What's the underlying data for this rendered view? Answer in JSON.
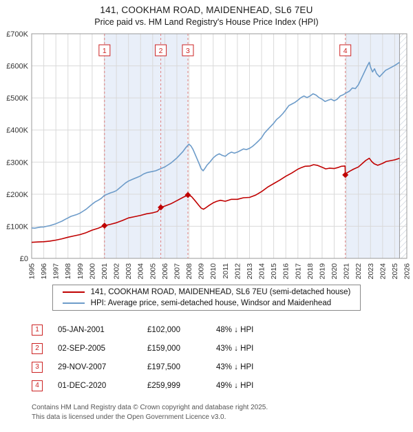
{
  "title": "141, COOKHAM ROAD, MAIDENHEAD, SL6 7EU",
  "subtitle": "Price paid vs. HM Land Registry's House Price Index (HPI)",
  "legend": {
    "property": "141, COOKHAM ROAD, MAIDENHEAD, SL6 7EU (semi-detached house)",
    "hpi": "HPI: Average price, semi-detached house, Windsor and Maidenhead"
  },
  "transactions": [
    {
      "num": "1",
      "date": "05-JAN-2001",
      "price": "£102,000",
      "vs_hpi": "48% ↓ HPI"
    },
    {
      "num": "2",
      "date": "02-SEP-2005",
      "price": "£159,000",
      "vs_hpi": "43% ↓ HPI"
    },
    {
      "num": "3",
      "date": "29-NOV-2007",
      "price": "£197,500",
      "vs_hpi": "43% ↓ HPI"
    },
    {
      "num": "4",
      "date": "01-DEC-2020",
      "price": "£259,999",
      "vs_hpi": "49% ↓ HPI"
    }
  ],
  "footer": {
    "line1": "Contains HM Land Registry data © Crown copyright and database right 2025.",
    "line2": "This data is licensed under the Open Government Licence v3.0."
  },
  "chart_data": {
    "type": "line",
    "title": "141, COOKHAM ROAD, MAIDENHEAD, SL6 7EU",
    "subtitle": "Price paid vs. HM Land Registry's House Price Index (HPI)",
    "xlabel": "",
    "ylabel": "",
    "grid": true,
    "legend_position": "bottom",
    "x_range": [
      1995,
      2026
    ],
    "y_range": [
      0,
      700000
    ],
    "y_ticks": [
      0,
      100000,
      200000,
      300000,
      400000,
      500000,
      600000,
      700000
    ],
    "y_tick_labels": [
      "£0",
      "£100K",
      "£200K",
      "£300K",
      "£400K",
      "£500K",
      "£600K",
      "£700K"
    ],
    "x_ticks": [
      1995,
      1996,
      1997,
      1998,
      1999,
      2000,
      2001,
      2002,
      2003,
      2004,
      2005,
      2006,
      2007,
      2008,
      2009,
      2010,
      2011,
      2012,
      2013,
      2014,
      2015,
      2016,
      2017,
      2018,
      2019,
      2020,
      2021,
      2022,
      2023,
      2024,
      2025,
      2026
    ],
    "colors": {
      "property": "#c00000",
      "hpi": "#6c9bc9",
      "shade": "#e9eff9",
      "dashed": "#e08080",
      "grid": "#d9d9d9",
      "border": "#999999",
      "hatch": "#b8c2d0",
      "marker_box": "#cc2222"
    },
    "shaded_regions": [
      [
        2001.02,
        2007.91
      ],
      [
        2020.92,
        2025.4
      ]
    ],
    "hatched_region": [
      2025.4,
      2026
    ],
    "data_end_x": 2025.4,
    "markers": [
      {
        "label": "1",
        "x": 2001.02,
        "y": 102000
      },
      {
        "label": "2",
        "x": 2005.67,
        "y": 159000
      },
      {
        "label": "3",
        "x": 2007.91,
        "y": 197500
      },
      {
        "label": "4",
        "x": 2020.92,
        "y": 259999
      }
    ],
    "series": [
      {
        "name": "HPI: Average price, semi-detached house, Windsor and Maidenhead",
        "key": "hpi",
        "color": "#6c9bc9",
        "points": [
          [
            1995.0,
            95000
          ],
          [
            1995.25,
            94000
          ],
          [
            1995.5,
            96000
          ],
          [
            1995.75,
            97500
          ],
          [
            1996.0,
            98000
          ],
          [
            1996.25,
            100000
          ],
          [
            1996.5,
            102000
          ],
          [
            1996.75,
            105000
          ],
          [
            1997.0,
            108000
          ],
          [
            1997.25,
            112000
          ],
          [
            1997.5,
            116000
          ],
          [
            1997.75,
            121000
          ],
          [
            1998.0,
            126000
          ],
          [
            1998.25,
            131000
          ],
          [
            1998.5,
            134000
          ],
          [
            1998.75,
            137000
          ],
          [
            1999.0,
            141000
          ],
          [
            1999.25,
            147000
          ],
          [
            1999.5,
            153000
          ],
          [
            1999.75,
            161000
          ],
          [
            2000.0,
            169000
          ],
          [
            2000.25,
            176000
          ],
          [
            2000.5,
            181000
          ],
          [
            2000.75,
            187000
          ],
          [
            2001.0,
            196000
          ],
          [
            2001.25,
            200000
          ],
          [
            2001.5,
            204000
          ],
          [
            2001.75,
            207000
          ],
          [
            2002.0,
            211000
          ],
          [
            2002.25,
            219000
          ],
          [
            2002.5,
            227000
          ],
          [
            2002.75,
            235000
          ],
          [
            2003.0,
            241000
          ],
          [
            2003.25,
            245000
          ],
          [
            2003.5,
            249000
          ],
          [
            2003.75,
            253000
          ],
          [
            2004.0,
            257000
          ],
          [
            2004.25,
            263000
          ],
          [
            2004.5,
            267000
          ],
          [
            2004.75,
            269000
          ],
          [
            2005.0,
            271000
          ],
          [
            2005.25,
            273000
          ],
          [
            2005.5,
            277000
          ],
          [
            2005.75,
            281000
          ],
          [
            2006.0,
            285000
          ],
          [
            2006.25,
            291000
          ],
          [
            2006.5,
            297000
          ],
          [
            2006.75,
            305000
          ],
          [
            2007.0,
            313000
          ],
          [
            2007.25,
            323000
          ],
          [
            2007.5,
            333000
          ],
          [
            2007.75,
            346000
          ],
          [
            2008.0,
            356000
          ],
          [
            2008.17,
            350000
          ],
          [
            2008.33,
            340000
          ],
          [
            2008.5,
            325000
          ],
          [
            2008.67,
            310000
          ],
          [
            2008.83,
            296000
          ],
          [
            2009.0,
            280000
          ],
          [
            2009.17,
            273000
          ],
          [
            2009.33,
            281000
          ],
          [
            2009.5,
            291000
          ],
          [
            2009.75,
            301000
          ],
          [
            2010.0,
            313000
          ],
          [
            2010.25,
            321000
          ],
          [
            2010.5,
            326000
          ],
          [
            2010.75,
            321000
          ],
          [
            2011.0,
            318000
          ],
          [
            2011.25,
            326000
          ],
          [
            2011.5,
            331000
          ],
          [
            2011.75,
            328000
          ],
          [
            2012.0,
            331000
          ],
          [
            2012.25,
            336000
          ],
          [
            2012.5,
            341000
          ],
          [
            2012.75,
            339000
          ],
          [
            2013.0,
            343000
          ],
          [
            2013.25,
            349000
          ],
          [
            2013.5,
            357000
          ],
          [
            2013.75,
            366000
          ],
          [
            2014.0,
            376000
          ],
          [
            2014.25,
            391000
          ],
          [
            2014.5,
            401000
          ],
          [
            2014.75,
            411000
          ],
          [
            2015.0,
            421000
          ],
          [
            2015.25,
            433000
          ],
          [
            2015.5,
            441000
          ],
          [
            2015.75,
            451000
          ],
          [
            2016.0,
            463000
          ],
          [
            2016.25,
            476000
          ],
          [
            2016.5,
            481000
          ],
          [
            2016.75,
            486000
          ],
          [
            2017.0,
            493000
          ],
          [
            2017.25,
            501000
          ],
          [
            2017.5,
            506000
          ],
          [
            2017.75,
            501000
          ],
          [
            2018.0,
            506000
          ],
          [
            2018.25,
            513000
          ],
          [
            2018.5,
            509000
          ],
          [
            2018.75,
            501000
          ],
          [
            2019.0,
            496000
          ],
          [
            2019.25,
            489000
          ],
          [
            2019.5,
            493000
          ],
          [
            2019.75,
            496000
          ],
          [
            2020.0,
            491000
          ],
          [
            2020.25,
            496000
          ],
          [
            2020.5,
            506000
          ],
          [
            2020.75,
            510000
          ],
          [
            2021.0,
            516000
          ],
          [
            2021.25,
            521000
          ],
          [
            2021.5,
            531000
          ],
          [
            2021.75,
            529000
          ],
          [
            2022.0,
            541000
          ],
          [
            2022.25,
            561000
          ],
          [
            2022.5,
            581000
          ],
          [
            2022.75,
            601000
          ],
          [
            2022.9,
            611000
          ],
          [
            2023.0,
            596000
          ],
          [
            2023.17,
            581000
          ],
          [
            2023.33,
            591000
          ],
          [
            2023.5,
            576000
          ],
          [
            2023.75,
            566000
          ],
          [
            2024.0,
            576000
          ],
          [
            2024.25,
            586000
          ],
          [
            2024.5,
            591000
          ],
          [
            2024.75,
            596000
          ],
          [
            2025.0,
            601000
          ],
          [
            2025.2,
            606000
          ],
          [
            2025.4,
            611000
          ]
        ]
      },
      {
        "name": "141, COOKHAM ROAD, MAIDENHEAD, SL6 7EU (semi-detached house)",
        "key": "property",
        "color": "#c00000",
        "points": [
          [
            1995.0,
            50000
          ],
          [
            1995.5,
            51000
          ],
          [
            1996.0,
            52000
          ],
          [
            1996.5,
            54000
          ],
          [
            1997.0,
            57000
          ],
          [
            1997.5,
            61000
          ],
          [
            1998.0,
            66000
          ],
          [
            1998.5,
            70000
          ],
          [
            1999.0,
            74000
          ],
          [
            1999.5,
            80000
          ],
          [
            2000.0,
            88000
          ],
          [
            2000.5,
            94000
          ],
          [
            2001.02,
            102000
          ],
          [
            2001.5,
            106000
          ],
          [
            2002.0,
            111000
          ],
          [
            2002.5,
            118000
          ],
          [
            2003.0,
            126000
          ],
          [
            2003.5,
            130000
          ],
          [
            2004.0,
            134000
          ],
          [
            2004.5,
            139000
          ],
          [
            2005.0,
            142000
          ],
          [
            2005.4,
            146000
          ],
          [
            2005.67,
            159000
          ],
          [
            2006.0,
            163000
          ],
          [
            2006.5,
            170000
          ],
          [
            2007.0,
            180000
          ],
          [
            2007.5,
            190000
          ],
          [
            2007.91,
            197500
          ],
          [
            2008.2,
            193000
          ],
          [
            2008.5,
            180000
          ],
          [
            2008.8,
            166000
          ],
          [
            2009.0,
            157000
          ],
          [
            2009.2,
            153000
          ],
          [
            2009.4,
            158000
          ],
          [
            2009.7,
            166000
          ],
          [
            2010.0,
            173000
          ],
          [
            2010.3,
            178000
          ],
          [
            2010.6,
            181000
          ],
          [
            2011.0,
            178000
          ],
          [
            2011.5,
            184000
          ],
          [
            2012.0,
            184000
          ],
          [
            2012.5,
            189000
          ],
          [
            2013.0,
            190000
          ],
          [
            2013.5,
            197000
          ],
          [
            2014.0,
            208000
          ],
          [
            2014.5,
            222000
          ],
          [
            2015.0,
            233000
          ],
          [
            2015.5,
            244000
          ],
          [
            2016.0,
            256000
          ],
          [
            2016.5,
            266000
          ],
          [
            2017.0,
            278000
          ],
          [
            2017.3,
            283000
          ],
          [
            2017.6,
            287000
          ],
          [
            2018.0,
            288000
          ],
          [
            2018.3,
            292000
          ],
          [
            2018.6,
            290000
          ],
          [
            2019.0,
            284000
          ],
          [
            2019.3,
            279000
          ],
          [
            2019.6,
            281000
          ],
          [
            2020.0,
            280000
          ],
          [
            2020.3,
            283000
          ],
          [
            2020.6,
            287000
          ],
          [
            2020.9,
            288000
          ],
          [
            2020.92,
            260000
          ],
          [
            2021.0,
            265000
          ],
          [
            2021.3,
            272000
          ],
          [
            2021.6,
            278000
          ],
          [
            2022.0,
            285000
          ],
          [
            2022.3,
            295000
          ],
          [
            2022.6,
            305000
          ],
          [
            2022.9,
            312000
          ],
          [
            2023.1,
            302000
          ],
          [
            2023.3,
            295000
          ],
          [
            2023.6,
            290000
          ],
          [
            2024.0,
            296000
          ],
          [
            2024.3,
            302000
          ],
          [
            2024.6,
            304000
          ],
          [
            2025.0,
            307000
          ],
          [
            2025.4,
            312000
          ]
        ]
      }
    ]
  }
}
